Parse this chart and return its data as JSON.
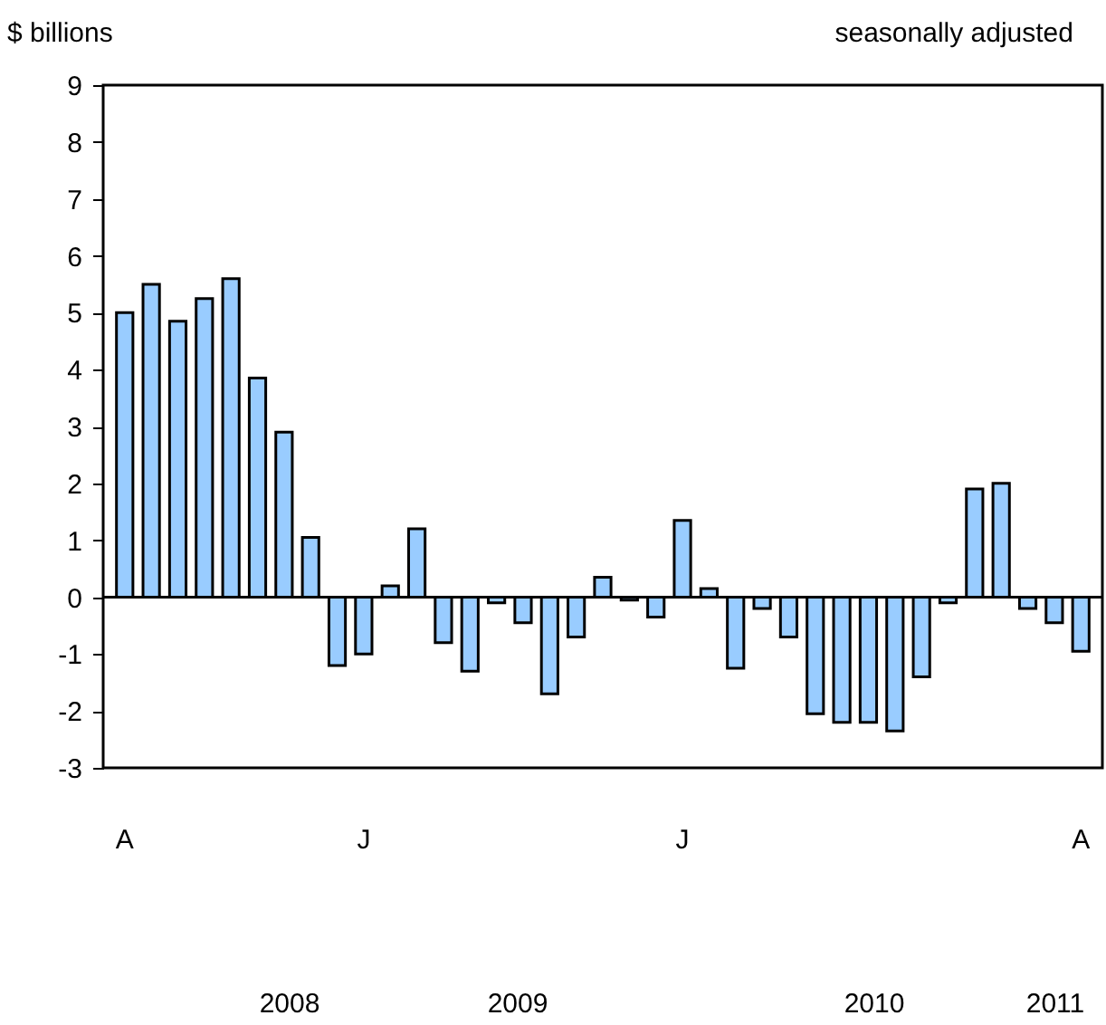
{
  "chart_data": {
    "type": "bar",
    "ylabel": "$ billions",
    "subtitle": "seasonally adjusted",
    "categories": [
      "A",
      null,
      null,
      null,
      null,
      null,
      null,
      null,
      null,
      "J",
      null,
      null,
      null,
      null,
      null,
      null,
      null,
      null,
      null,
      null,
      null,
      "J",
      null,
      null,
      null,
      null,
      null,
      null,
      null,
      null,
      null,
      null,
      null,
      null,
      null,
      null,
      "A"
    ],
    "values": [
      5.0,
      5.5,
      4.85,
      5.25,
      5.6,
      3.85,
      2.9,
      1.05,
      -1.2,
      -1.0,
      0.2,
      1.2,
      -0.8,
      -1.3,
      -0.1,
      -0.45,
      -1.7,
      -0.7,
      0.35,
      -0.05,
      -0.35,
      1.35,
      0.15,
      -1.25,
      -0.2,
      -0.7,
      -2.05,
      -2.2,
      -2.2,
      -2.35,
      -1.4,
      -0.1,
      1.9,
      2.0,
      -0.2,
      -0.45,
      -0.95
    ],
    "color": "#99ccff",
    "ylim": [
      -3,
      9
    ],
    "yticks": [
      -3,
      -2,
      -1,
      0,
      1,
      2,
      3,
      4,
      5,
      6,
      7,
      8,
      9
    ],
    "annotations": [
      "2008",
      "2009",
      "2010",
      "2011"
    ]
  }
}
